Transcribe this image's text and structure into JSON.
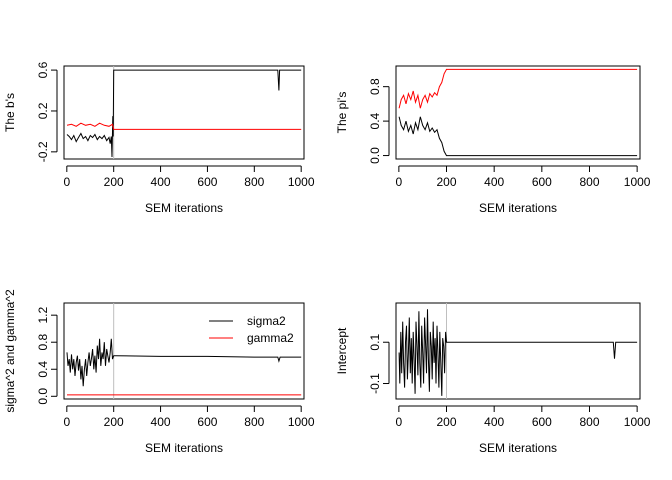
{
  "chart_data": [
    {
      "type": "line",
      "xlabel": "SEM iterations",
      "ylabel": "The b's",
      "xlim": [
        -12,
        1012
      ],
      "ylim": [
        -0.27,
        0.64
      ],
      "xticks": [
        0,
        200,
        400,
        600,
        800,
        1000
      ],
      "yticks": [
        -0.2,
        0.2,
        0.6
      ],
      "yticklabels": [
        "-0.2",
        "0.2",
        "0.6"
      ],
      "vline_x": 200,
      "series": [
        {
          "color": "#000000",
          "x": [
            1,
            10,
            20,
            30,
            40,
            50,
            60,
            70,
            80,
            90,
            100,
            110,
            120,
            130,
            140,
            150,
            160,
            170,
            180,
            185,
            190,
            193,
            196,
            198,
            200,
            210,
            300,
            500,
            700,
            900,
            905,
            908,
            910,
            1000
          ],
          "values": [
            -0.03,
            -0.05,
            -0.08,
            -0.04,
            -0.1,
            -0.06,
            -0.02,
            -0.07,
            -0.05,
            -0.09,
            -0.04,
            -0.06,
            -0.03,
            -0.08,
            -0.05,
            -0.07,
            -0.04,
            -0.09,
            -0.06,
            -0.12,
            -0.05,
            -0.25,
            0.15,
            -0.05,
            0.6,
            0.6,
            0.6,
            0.6,
            0.6,
            0.6,
            0.4,
            0.6,
            0.6,
            0.6
          ]
        },
        {
          "color": "#ff0000",
          "x": [
            1,
            20,
            40,
            60,
            80,
            100,
            120,
            140,
            160,
            180,
            195,
            200,
            210,
            400,
            600,
            800,
            1000
          ],
          "values": [
            0.06,
            0.07,
            0.05,
            0.08,
            0.06,
            0.07,
            0.05,
            0.08,
            0.06,
            0.05,
            0.07,
            0.02,
            0.02,
            0.02,
            0.02,
            0.02,
            0.02
          ]
        }
      ]
    },
    {
      "type": "line",
      "xlabel": "SEM iterations",
      "ylabel": "The pi's",
      "xlim": [
        -12,
        1012
      ],
      "ylim": [
        -0.04,
        1.04
      ],
      "xticks": [
        0,
        200,
        400,
        600,
        800,
        1000
      ],
      "yticks": [
        0,
        0.4,
        0.8
      ],
      "yticklabels": [
        "0.0",
        "0.4",
        "0.8"
      ],
      "series": [
        {
          "color": "#000000",
          "x": [
            1,
            10,
            20,
            30,
            40,
            50,
            60,
            70,
            80,
            90,
            100,
            110,
            120,
            130,
            140,
            150,
            160,
            170,
            180,
            190,
            200,
            210,
            400,
            600,
            800,
            900,
            1000
          ],
          "values": [
            0.45,
            0.35,
            0.3,
            0.4,
            0.28,
            0.35,
            0.25,
            0.38,
            0.3,
            0.45,
            0.35,
            0.3,
            0.38,
            0.28,
            0.32,
            0.27,
            0.3,
            0.2,
            0.15,
            0.05,
            0.0,
            0.0,
            0.0,
            0.0,
            0.0,
            0.0,
            0.0
          ]
        },
        {
          "color": "#ff0000",
          "x": [
            1,
            10,
            20,
            30,
            40,
            50,
            60,
            70,
            80,
            90,
            100,
            110,
            120,
            130,
            140,
            150,
            160,
            170,
            180,
            190,
            200,
            210,
            400,
            600,
            800,
            900,
            1000
          ],
          "values": [
            0.55,
            0.65,
            0.7,
            0.6,
            0.72,
            0.65,
            0.75,
            0.62,
            0.7,
            0.55,
            0.65,
            0.7,
            0.62,
            0.72,
            0.68,
            0.73,
            0.7,
            0.8,
            0.85,
            0.95,
            1.0,
            1.0,
            1.0,
            1.0,
            1.0,
            1.0,
            1.0
          ]
        }
      ]
    },
    {
      "type": "line",
      "xlabel": "SEM iterations",
      "ylabel": "sigma^2 and gamma^2",
      "xlim": [
        -12,
        1012
      ],
      "ylim": [
        -0.04,
        1.38
      ],
      "xticks": [
        0,
        200,
        400,
        600,
        800,
        1000
      ],
      "yticks": [
        0,
        0.4,
        0.8,
        1.2
      ],
      "yticklabels": [
        "0.0",
        "0.4",
        "0.8",
        "1.2"
      ],
      "vline_x": 200,
      "legend": {
        "position": "top-right",
        "entries": [
          "sigma2",
          "gamma2"
        ]
      },
      "series": [
        {
          "name": "sigma2",
          "color": "#000000",
          "x": [
            1,
            5,
            10,
            15,
            20,
            25,
            30,
            35,
            40,
            45,
            50,
            55,
            60,
            65,
            70,
            75,
            80,
            85,
            90,
            95,
            100,
            105,
            110,
            115,
            120,
            125,
            130,
            135,
            140,
            145,
            150,
            155,
            160,
            165,
            170,
            175,
            180,
            185,
            190,
            195,
            200,
            210,
            400,
            600,
            800,
            900,
            905,
            910,
            1000
          ],
          "values": [
            0.65,
            0.45,
            0.55,
            0.35,
            0.62,
            0.4,
            0.55,
            0.3,
            0.5,
            0.6,
            0.38,
            0.55,
            0.25,
            0.45,
            0.15,
            0.4,
            0.55,
            0.3,
            0.5,
            0.65,
            0.45,
            0.55,
            0.7,
            0.4,
            0.6,
            0.35,
            0.75,
            0.55,
            0.85,
            0.45,
            0.65,
            0.55,
            0.8,
            0.45,
            0.7,
            0.6,
            0.5,
            0.65,
            0.85,
            0.55,
            0.6,
            0.6,
            0.59,
            0.59,
            0.58,
            0.58,
            0.52,
            0.58,
            0.58
          ]
        },
        {
          "name": "gamma2",
          "color": "#ff0000",
          "x": [
            1,
            200,
            400,
            600,
            800,
            1000
          ],
          "values": [
            0.02,
            0.02,
            0.02,
            0.02,
            0.02,
            0.02
          ]
        }
      ]
    },
    {
      "type": "line",
      "xlabel": "SEM iterations",
      "ylabel": "Intercept",
      "xlim": [
        -12,
        1012
      ],
      "ylim": [
        -0.175,
        0.29
      ],
      "xticks": [
        0,
        200,
        400,
        600,
        800,
        1000
      ],
      "yticks": [
        -0.1,
        0.1
      ],
      "yticklabels": [
        "-0.1",
        "0.1"
      ],
      "vline_x": 200,
      "series": [
        {
          "color": "#000000",
          "x": [
            1,
            4,
            8,
            12,
            16,
            20,
            24,
            28,
            32,
            36,
            40,
            44,
            48,
            52,
            56,
            60,
            64,
            68,
            72,
            76,
            80,
            84,
            88,
            92,
            96,
            100,
            104,
            108,
            112,
            116,
            120,
            124,
            128,
            132,
            136,
            140,
            144,
            148,
            152,
            156,
            160,
            164,
            168,
            172,
            176,
            180,
            184,
            188,
            192,
            196,
            200,
            210,
            400,
            600,
            800,
            900,
            905,
            910,
            1000
          ],
          "values": [
            0.05,
            -0.1,
            0.15,
            -0.05,
            0.2,
            0.0,
            -0.12,
            0.1,
            0.18,
            -0.08,
            0.05,
            0.22,
            -0.05,
            0.12,
            -0.1,
            0.15,
            0.02,
            -0.15,
            0.2,
            0.08,
            -0.06,
            0.25,
            0.0,
            -0.12,
            0.18,
            0.05,
            -0.1,
            0.22,
            0.1,
            -0.05,
            0.26,
            0.02,
            -0.14,
            0.15,
            0.08,
            -0.08,
            0.2,
            0.0,
            0.12,
            -0.1,
            0.18,
            0.05,
            -0.12,
            0.15,
            0.0,
            -0.16,
            0.12,
            0.08,
            -0.05,
            0.15,
            0.1,
            0.1,
            0.1,
            0.1,
            0.1,
            0.1,
            0.02,
            0.1,
            0.1
          ]
        }
      ]
    }
  ]
}
